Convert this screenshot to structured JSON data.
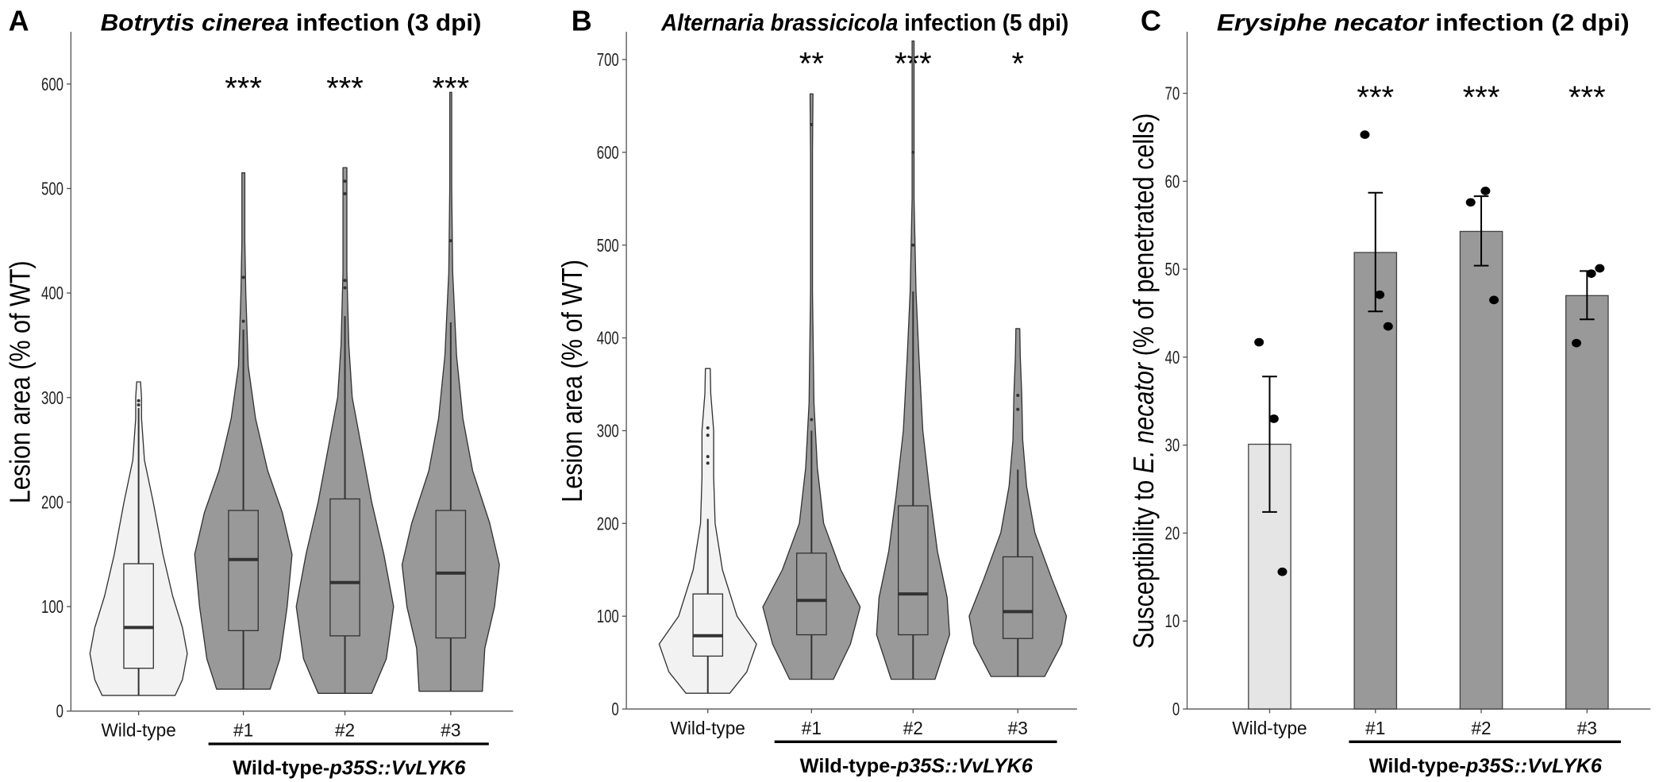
{
  "colors": {
    "wildtype_fill": "#f2f2f2",
    "transgenic_fill": "#999999",
    "bar_wildtype": "#e5e5e5",
    "bar_transgenic": "#999999",
    "line": "#333333"
  },
  "chart_data": [
    {
      "panel": "A",
      "type": "violin",
      "title_italic": "Botrytis cinerea",
      "title_rest": " infection (3 dpi)",
      "ylabel": "Lesion area (% of WT)",
      "ylim": [
        0,
        650
      ],
      "yticks": [
        0,
        100,
        200,
        300,
        400,
        500,
        600
      ],
      "categories": [
        "Wild-type",
        "#1",
        "#2",
        "#3"
      ],
      "group_label_plain": "Wild-type-",
      "group_label_italic": "p35S::VvLYK6",
      "significance": [
        "",
        "***",
        "***",
        "***"
      ],
      "series": [
        {
          "name": "Wild-type",
          "min": 15,
          "q1": 41,
          "median": 80,
          "q3": 141,
          "whisker_high": 290,
          "max": 315,
          "outliers": [
            293,
            297
          ],
          "density": [
            [
              15,
              0.75
            ],
            [
              30,
              0.9
            ],
            [
              55,
              1.0
            ],
            [
              80,
              0.9
            ],
            [
              110,
              0.7
            ],
            [
              150,
              0.5
            ],
            [
              200,
              0.3
            ],
            [
              240,
              0.12
            ],
            [
              280,
              0.06
            ],
            [
              300,
              0.06
            ],
            [
              315,
              0.04
            ]
          ]
        },
        {
          "name": "#1",
          "min": 21,
          "q1": 77,
          "median": 145,
          "q3": 192,
          "whisker_high": 365,
          "max": 515,
          "outliers": [
            373,
            415
          ],
          "density": [
            [
              21,
              0.55
            ],
            [
              50,
              0.75
            ],
            [
              100,
              0.9
            ],
            [
              150,
              1.0
            ],
            [
              190,
              0.8
            ],
            [
              230,
              0.5
            ],
            [
              280,
              0.25
            ],
            [
              330,
              0.1
            ],
            [
              400,
              0.05
            ],
            [
              450,
              0.03
            ],
            [
              515,
              0.03
            ]
          ]
        },
        {
          "name": "#2",
          "min": 17,
          "q1": 72,
          "median": 123,
          "q3": 203,
          "whisker_high": 378,
          "max": 520,
          "outliers": [
            405,
            412,
            495,
            507
          ],
          "density": [
            [
              17,
              0.55
            ],
            [
              50,
              0.85
            ],
            [
              100,
              1.0
            ],
            [
              150,
              0.8
            ],
            [
              200,
              0.55
            ],
            [
              250,
              0.35
            ],
            [
              300,
              0.15
            ],
            [
              350,
              0.08
            ],
            [
              420,
              0.04
            ],
            [
              500,
              0.04
            ],
            [
              520,
              0.04
            ]
          ]
        },
        {
          "name": "#3",
          "min": 19,
          "q1": 70,
          "median": 132,
          "q3": 192,
          "whisker_high": 372,
          "max": 592,
          "outliers": [
            450
          ],
          "density": [
            [
              19,
              0.65
            ],
            [
              60,
              0.7
            ],
            [
              100,
              0.9
            ],
            [
              140,
              1.0
            ],
            [
              180,
              0.8
            ],
            [
              230,
              0.45
            ],
            [
              280,
              0.25
            ],
            [
              340,
              0.12
            ],
            [
              420,
              0.04
            ],
            [
              500,
              0.02
            ],
            [
              592,
              0.02
            ]
          ]
        }
      ]
    },
    {
      "panel": "B",
      "type": "violin",
      "title_italic": "Alternaria brassicicola",
      "title_rest": " infection (5 dpi)",
      "ylabel": "Lesion area (% of WT)",
      "ylim": [
        0,
        730
      ],
      "yticks": [
        0,
        100,
        200,
        300,
        400,
        500,
        600,
        700
      ],
      "categories": [
        "Wild-type",
        "#1",
        "#2",
        "#3"
      ],
      "group_label_plain": "Wild-type-",
      "group_label_italic": "p35S::VvLYK6",
      "significance": [
        "",
        "**",
        "***",
        "*"
      ],
      "series": [
        {
          "name": "Wild-type",
          "min": 17,
          "q1": 57,
          "median": 79,
          "q3": 124,
          "whisker_high": 205,
          "max": 367,
          "outliers": [
            265,
            272,
            295,
            303
          ],
          "density": [
            [
              17,
              0.45
            ],
            [
              40,
              0.8
            ],
            [
              70,
              1.0
            ],
            [
              100,
              0.6
            ],
            [
              150,
              0.3
            ],
            [
              200,
              0.15
            ],
            [
              250,
              0.12
            ],
            [
              300,
              0.12
            ],
            [
              340,
              0.06
            ],
            [
              367,
              0.05
            ]
          ]
        },
        {
          "name": "#1",
          "min": 32,
          "q1": 80,
          "median": 117,
          "q3": 168,
          "whisker_high": 300,
          "max": 663,
          "outliers": [
            312,
            630
          ],
          "density": [
            [
              32,
              0.45
            ],
            [
              70,
              0.8
            ],
            [
              110,
              1.0
            ],
            [
              150,
              0.6
            ],
            [
              200,
              0.25
            ],
            [
              260,
              0.12
            ],
            [
              330,
              0.05
            ],
            [
              450,
              0.02
            ],
            [
              600,
              0.02
            ],
            [
              663,
              0.03
            ]
          ]
        },
        {
          "name": "#2",
          "min": 32,
          "q1": 80,
          "median": 124,
          "q3": 219,
          "whisker_high": 450,
          "max": 720,
          "outliers": [
            500,
            600
          ],
          "density": [
            [
              32,
              0.45
            ],
            [
              80,
              0.75
            ],
            [
              120,
              0.7
            ],
            [
              170,
              0.5
            ],
            [
              230,
              0.35
            ],
            [
              300,
              0.2
            ],
            [
              380,
              0.12
            ],
            [
              450,
              0.06
            ],
            [
              550,
              0.02
            ],
            [
              720,
              0.02
            ]
          ]
        },
        {
          "name": "#3",
          "min": 35,
          "q1": 76,
          "median": 105,
          "q3": 164,
          "whisker_high": 258,
          "max": 410,
          "outliers": [
            323,
            338
          ],
          "density": [
            [
              35,
              0.55
            ],
            [
              70,
              0.9
            ],
            [
              100,
              1.0
            ],
            [
              140,
              0.7
            ],
            [
              190,
              0.35
            ],
            [
              240,
              0.18
            ],
            [
              290,
              0.1
            ],
            [
              340,
              0.08
            ],
            [
              380,
              0.05
            ],
            [
              410,
              0.04
            ]
          ]
        }
      ]
    },
    {
      "panel": "C",
      "type": "bar",
      "title_italic": "Erysiphe necator",
      "title_rest": " infection (2 dpi)",
      "ylabel_pre": "Susceptibility to ",
      "ylabel_italic": "E. necator",
      "ylabel_post": " (% of penetrated cells)",
      "ylim": [
        0,
        77
      ],
      "yticks": [
        0,
        10,
        20,
        30,
        40,
        50,
        60,
        70
      ],
      "categories": [
        "Wild-type",
        "#1",
        "#2",
        "#3"
      ],
      "group_label_plain": "Wild-type-",
      "group_label_italic": "p35S::VvLYK6",
      "significance": [
        "",
        "***",
        "***",
        "***"
      ],
      "values": [
        30.1,
        51.9,
        54.3,
        47.0
      ],
      "error_low": [
        22.4,
        45.2,
        50.4,
        44.3
      ],
      "error_high": [
        37.8,
        58.7,
        58.3,
        49.8
      ],
      "points": [
        [
          41.7,
          33.0,
          15.6
        ],
        [
          65.3,
          47.1,
          43.5
        ],
        [
          57.6,
          58.9,
          46.5
        ],
        [
          41.6,
          49.5,
          50.1
        ]
      ]
    }
  ]
}
